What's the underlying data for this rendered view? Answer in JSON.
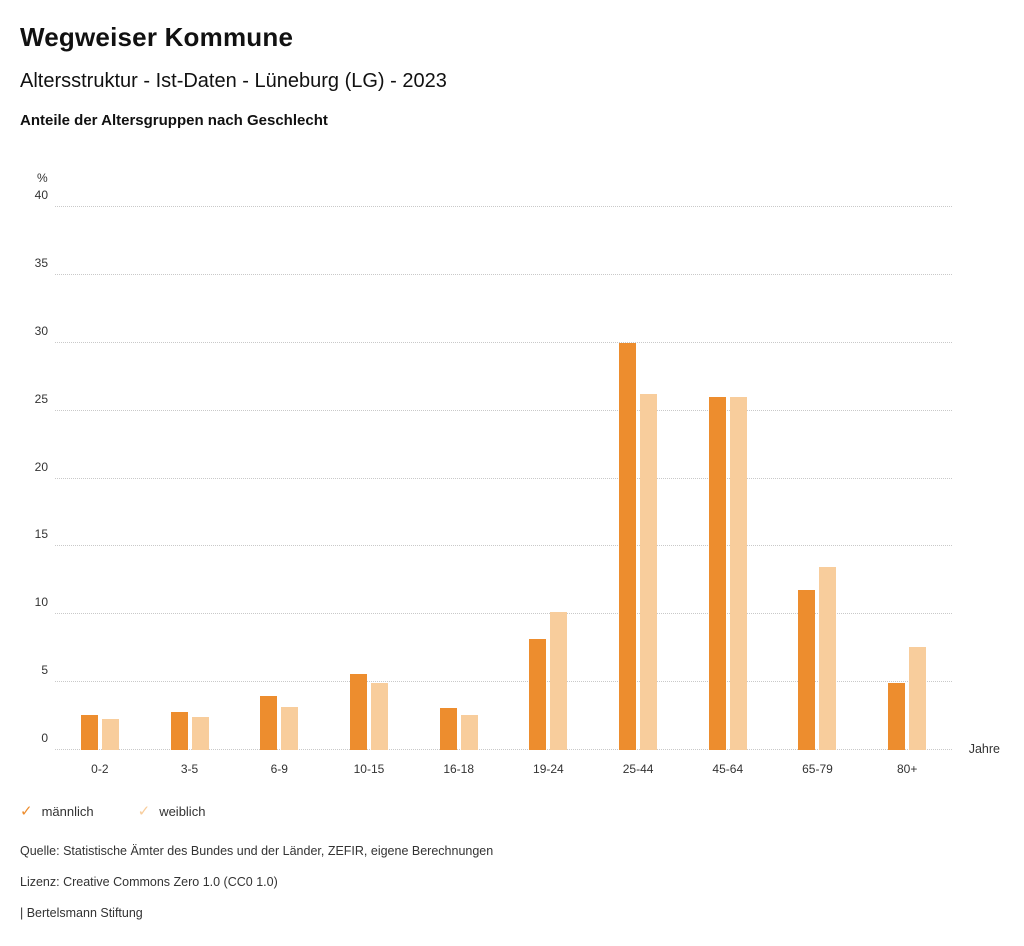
{
  "header": {
    "title": "Wegweiser Kommune",
    "subtitle": "Altersstruktur - Ist-Daten - Lüneburg (LG) - 2023",
    "chart_heading": "Anteile der Altersgruppen nach Geschlecht"
  },
  "chart_data": {
    "type": "bar",
    "title": "Anteile der Altersgruppen nach Geschlecht",
    "categories": [
      "0-2",
      "3-5",
      "6-9",
      "10-15",
      "16-18",
      "19-24",
      "25-44",
      "45-64",
      "65-79",
      "80+"
    ],
    "series": [
      {
        "name": "männlich",
        "color": "#ED8D2E",
        "values": [
          2.6,
          2.8,
          4.0,
          5.6,
          3.1,
          8.2,
          30.0,
          26.0,
          11.8,
          4.9
        ]
      },
      {
        "name": "weiblich",
        "color": "#F8CD9C",
        "values": [
          2.3,
          2.4,
          3.2,
          4.9,
          2.6,
          10.2,
          26.2,
          26.0,
          13.5,
          7.6
        ]
      }
    ],
    "ylabel": "%",
    "xlabel": "Jahre",
    "ylim": [
      0,
      40
    ],
    "ytick_step": 5,
    "grid": true,
    "legend_position": "bottom-left",
    "legend_icon": "checkmark"
  },
  "footer": {
    "source": "Quelle: Statistische Ämter des Bundes und der Länder, ZEFIR, eigene Berechnungen",
    "license": "Lizenz: Creative Commons Zero 1.0 (CC0 1.0)",
    "brand": "| Bertelsmann Stiftung"
  }
}
